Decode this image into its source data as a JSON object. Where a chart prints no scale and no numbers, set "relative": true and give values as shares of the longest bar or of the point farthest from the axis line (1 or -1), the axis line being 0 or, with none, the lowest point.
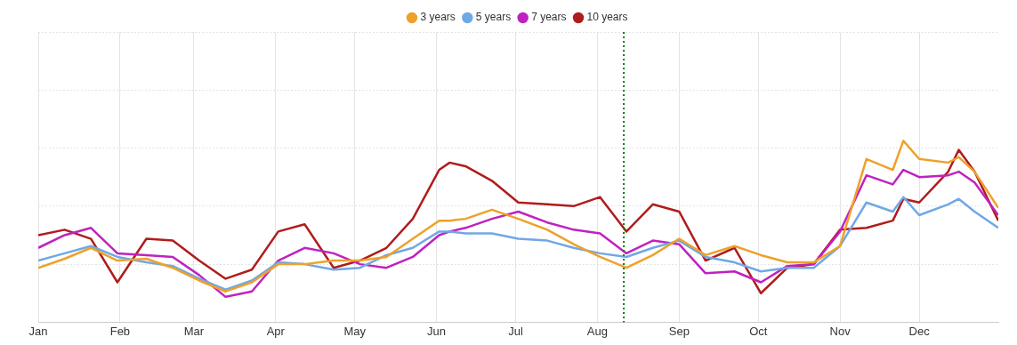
{
  "chart_data": {
    "type": "line",
    "relative": true,
    "grid": true,
    "legend": "top",
    "marker": "none",
    "line_style": "solid",
    "x": [
      "--01-01",
      "--01-11",
      "--01-21",
      "--01-31",
      "--02-11",
      "--02-21",
      "--03-03",
      "--03-13",
      "--03-23",
      "--04-02",
      "--04-12",
      "--04-23",
      "--05-03",
      "--05-13",
      "--05-23",
      "--06-02",
      "--06-06",
      "--06-12",
      "--06-22",
      "--07-02",
      "--07-13",
      "--07-23",
      "--08-02",
      "--08-12",
      "--08-22",
      "--09-01",
      "--09-11",
      "--09-22",
      "--10-02",
      "--10-12",
      "--10-22",
      "--11-01",
      "--11-11",
      "--11-21",
      "--11-25",
      "--12-01",
      "--12-12",
      "--12-16",
      "--12-22",
      "--12-31"
    ],
    "xlim": [
      "--01-01",
      "--12-31"
    ],
    "xticks": [
      {
        "value": "--01-01",
        "label": "Jan"
      },
      {
        "value": "--02-01",
        "label": "Feb"
      },
      {
        "value": "--03-01",
        "label": "Mar"
      },
      {
        "value": "--04-01",
        "label": "Apr"
      },
      {
        "value": "--05-01",
        "label": "May"
      },
      {
        "value": "--06-01",
        "label": "Jun"
      },
      {
        "value": "--07-01",
        "label": "Jul"
      },
      {
        "value": "--08-01",
        "label": "Aug"
      },
      {
        "value": "--09-01",
        "label": "Sep"
      },
      {
        "value": "--10-01",
        "label": "Oct"
      },
      {
        "value": "--11-01",
        "label": "Nov"
      },
      {
        "value": "--12-01",
        "label": "Dec"
      }
    ],
    "ref_lines": [
      {
        "axis": "x",
        "value": "--08-11",
        "color": "#008000",
        "line_style": "dotted"
      }
    ],
    "series": [
      {
        "name": "3 years",
        "color": "#eea12a",
        "values": [
          0.3,
          0.35,
          0.41,
          0.34,
          0.35,
          0.3,
          0.23,
          0.17,
          0.22,
          0.32,
          0.32,
          0.34,
          0.34,
          0.36,
          0.46,
          0.56,
          0.56,
          0.57,
          0.62,
          0.57,
          0.51,
          0.43,
          0.36,
          0.3,
          0.37,
          0.46,
          0.37,
          0.42,
          0.37,
          0.33,
          0.33,
          0.42,
          0.9,
          0.84,
          1.0,
          0.9,
          0.88,
          0.91,
          0.83,
          0.63
        ]
      },
      {
        "name": "5 years",
        "color": "#6fa8e6",
        "values": [
          0.34,
          0.38,
          0.42,
          0.36,
          0.33,
          0.31,
          0.24,
          0.18,
          0.23,
          0.33,
          0.32,
          0.29,
          0.3,
          0.37,
          0.41,
          0.5,
          0.5,
          0.49,
          0.49,
          0.46,
          0.45,
          0.41,
          0.38,
          0.36,
          0.41,
          0.45,
          0.36,
          0.33,
          0.28,
          0.3,
          0.3,
          0.42,
          0.66,
          0.61,
          0.69,
          0.59,
          0.65,
          0.68,
          0.61,
          0.52
        ]
      },
      {
        "name": "7 years",
        "color": "#bf22bf",
        "values": [
          0.41,
          0.48,
          0.52,
          0.38,
          0.37,
          0.36,
          0.26,
          0.14,
          0.17,
          0.34,
          0.41,
          0.38,
          0.32,
          0.3,
          0.36,
          0.48,
          0.5,
          0.52,
          0.57,
          0.61,
          0.55,
          0.51,
          0.49,
          0.38,
          0.45,
          0.43,
          0.27,
          0.28,
          0.22,
          0.31,
          0.32,
          0.5,
          0.81,
          0.76,
          0.84,
          0.8,
          0.81,
          0.83,
          0.77,
          0.59
        ]
      },
      {
        "name": "10 years",
        "color": "#b01c1c",
        "values": [
          0.48,
          0.51,
          0.46,
          0.22,
          0.46,
          0.45,
          0.34,
          0.24,
          0.29,
          0.5,
          0.54,
          0.3,
          0.34,
          0.41,
          0.57,
          0.84,
          0.88,
          0.86,
          0.78,
          0.66,
          0.65,
          0.64,
          0.69,
          0.5,
          0.65,
          0.61,
          0.34,
          0.41,
          0.16,
          0.3,
          0.32,
          0.51,
          0.52,
          0.56,
          0.68,
          0.66,
          0.83,
          0.95,
          0.83,
          0.56
        ]
      }
    ]
  }
}
